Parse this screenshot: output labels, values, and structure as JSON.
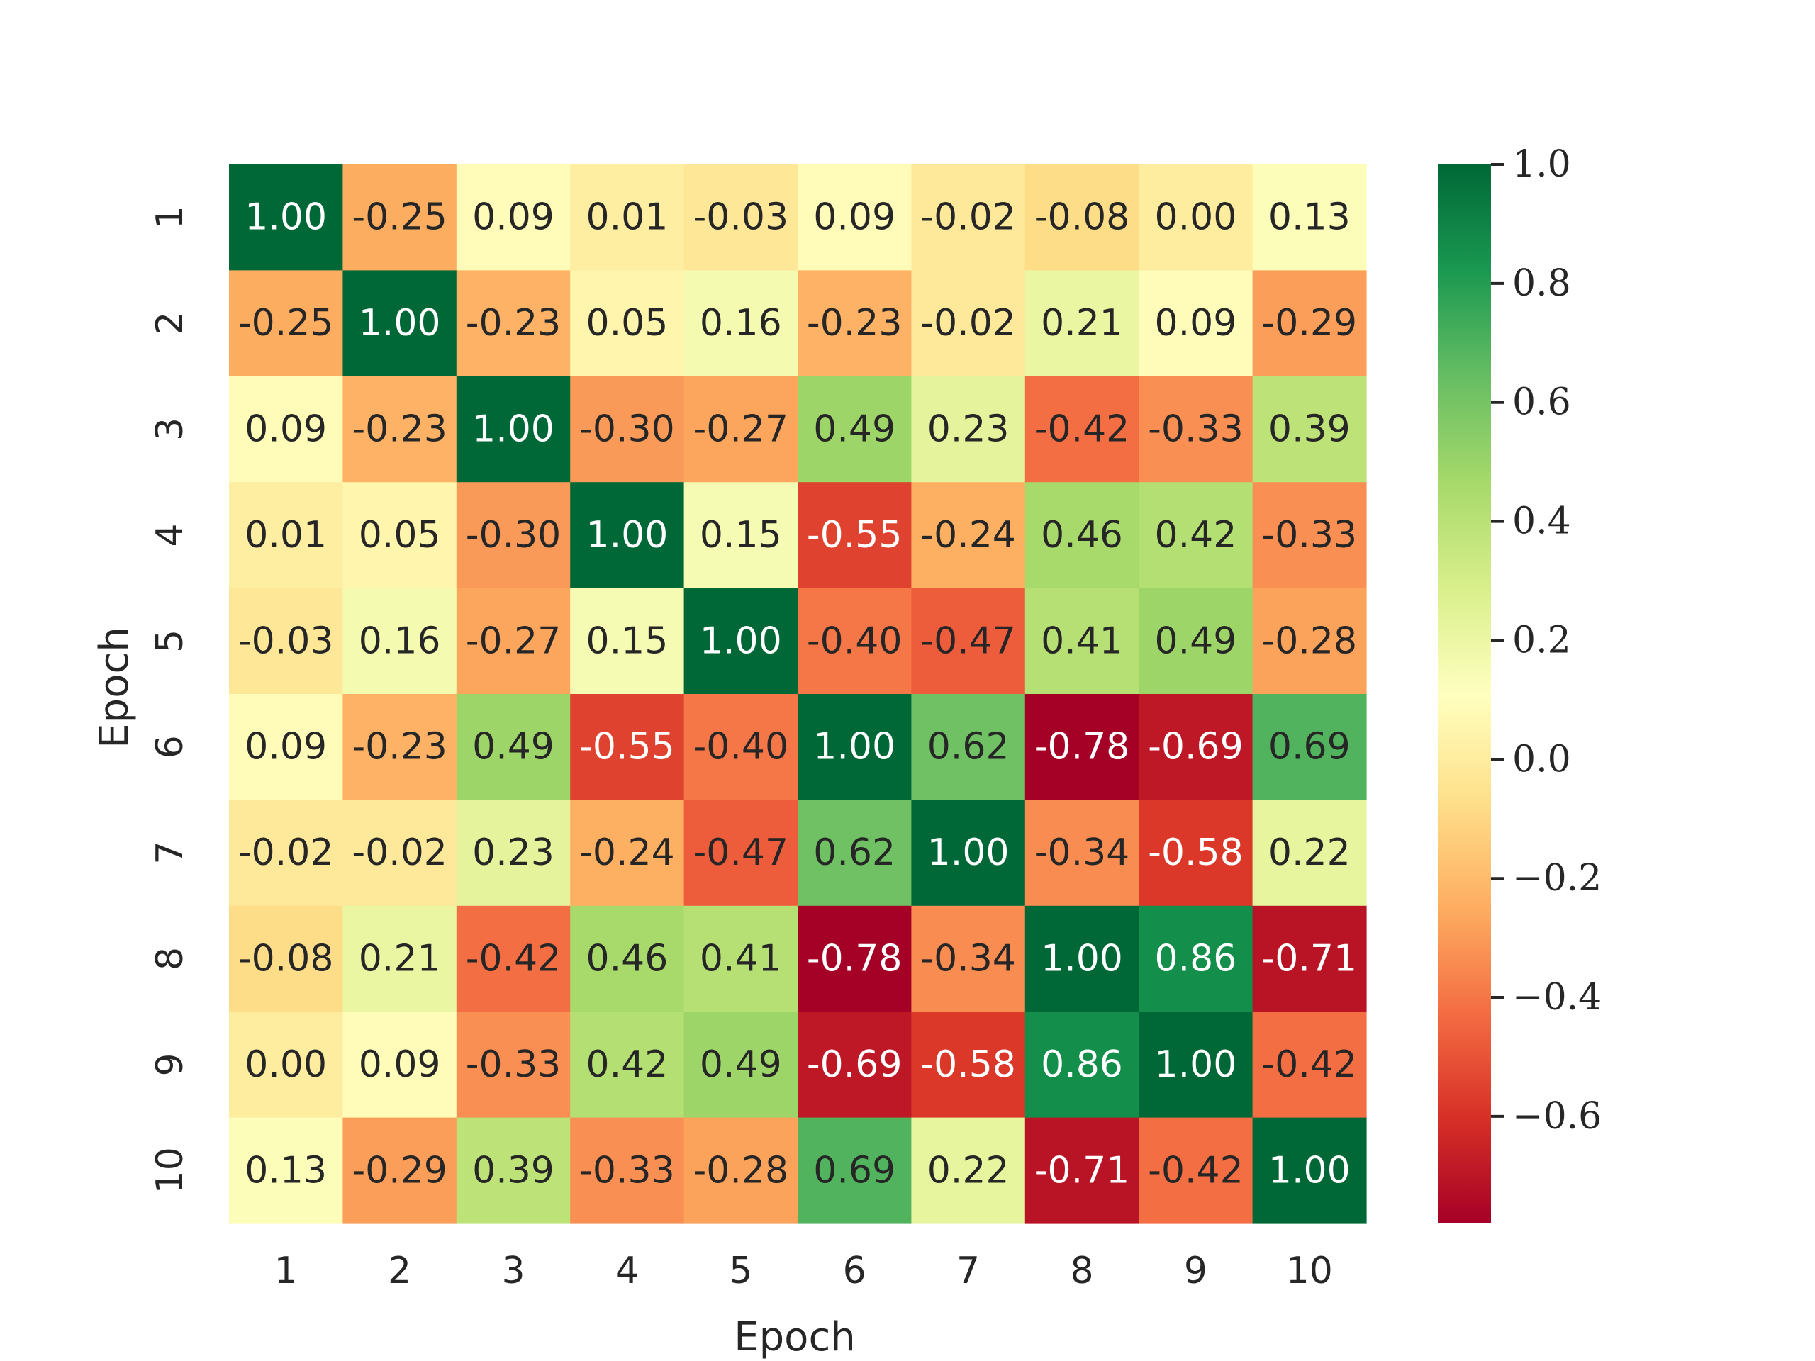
{
  "chart_data": {
    "type": "heatmap",
    "title": "",
    "xlabel": "Epoch",
    "ylabel": "Epoch",
    "x_categories": [
      "1",
      "2",
      "3",
      "4",
      "5",
      "6",
      "7",
      "8",
      "9",
      "10"
    ],
    "y_categories": [
      "1",
      "2",
      "3",
      "4",
      "5",
      "6",
      "7",
      "8",
      "9",
      "10"
    ],
    "values": [
      [
        1.0,
        -0.25,
        0.09,
        0.01,
        -0.03,
        0.09,
        -0.02,
        -0.08,
        0.0,
        0.13
      ],
      [
        -0.25,
        1.0,
        -0.23,
        0.05,
        0.16,
        -0.23,
        -0.02,
        0.21,
        0.09,
        -0.29
      ],
      [
        0.09,
        -0.23,
        1.0,
        -0.3,
        -0.27,
        0.49,
        0.23,
        -0.42,
        -0.33,
        0.39
      ],
      [
        0.01,
        0.05,
        -0.3,
        1.0,
        0.15,
        -0.55,
        -0.24,
        0.46,
        0.42,
        -0.33
      ],
      [
        -0.03,
        0.16,
        -0.27,
        0.15,
        1.0,
        -0.4,
        -0.47,
        0.41,
        0.49,
        -0.28
      ],
      [
        0.09,
        -0.23,
        0.49,
        -0.55,
        -0.4,
        1.0,
        0.62,
        -0.78,
        -0.69,
        0.69
      ],
      [
        -0.02,
        -0.02,
        0.23,
        -0.24,
        -0.47,
        0.62,
        1.0,
        -0.34,
        -0.58,
        0.22
      ],
      [
        -0.08,
        0.21,
        -0.42,
        0.46,
        0.41,
        -0.78,
        -0.34,
        1.0,
        0.86,
        -0.71
      ],
      [
        0.0,
        0.09,
        -0.33,
        0.42,
        0.49,
        -0.69,
        -0.58,
        0.86,
        1.0,
        -0.42
      ],
      [
        0.13,
        -0.29,
        0.39,
        -0.33,
        -0.28,
        0.69,
        0.22,
        -0.71,
        -0.42,
        1.0
      ]
    ],
    "value_format": "2 decimals",
    "colormap": "RdYlGn",
    "colorbar": {
      "range": [
        -0.78,
        1.0
      ],
      "ticks": [
        1.0,
        0.8,
        0.6,
        0.4,
        0.2,
        0.0,
        -0.2,
        -0.4,
        -0.6
      ],
      "tick_labels": [
        "1.0",
        "0.8",
        "0.6",
        "0.4",
        "0.2",
        "0.0",
        "−0.2",
        "−0.4",
        "−0.6"
      ]
    },
    "grid": false
  }
}
